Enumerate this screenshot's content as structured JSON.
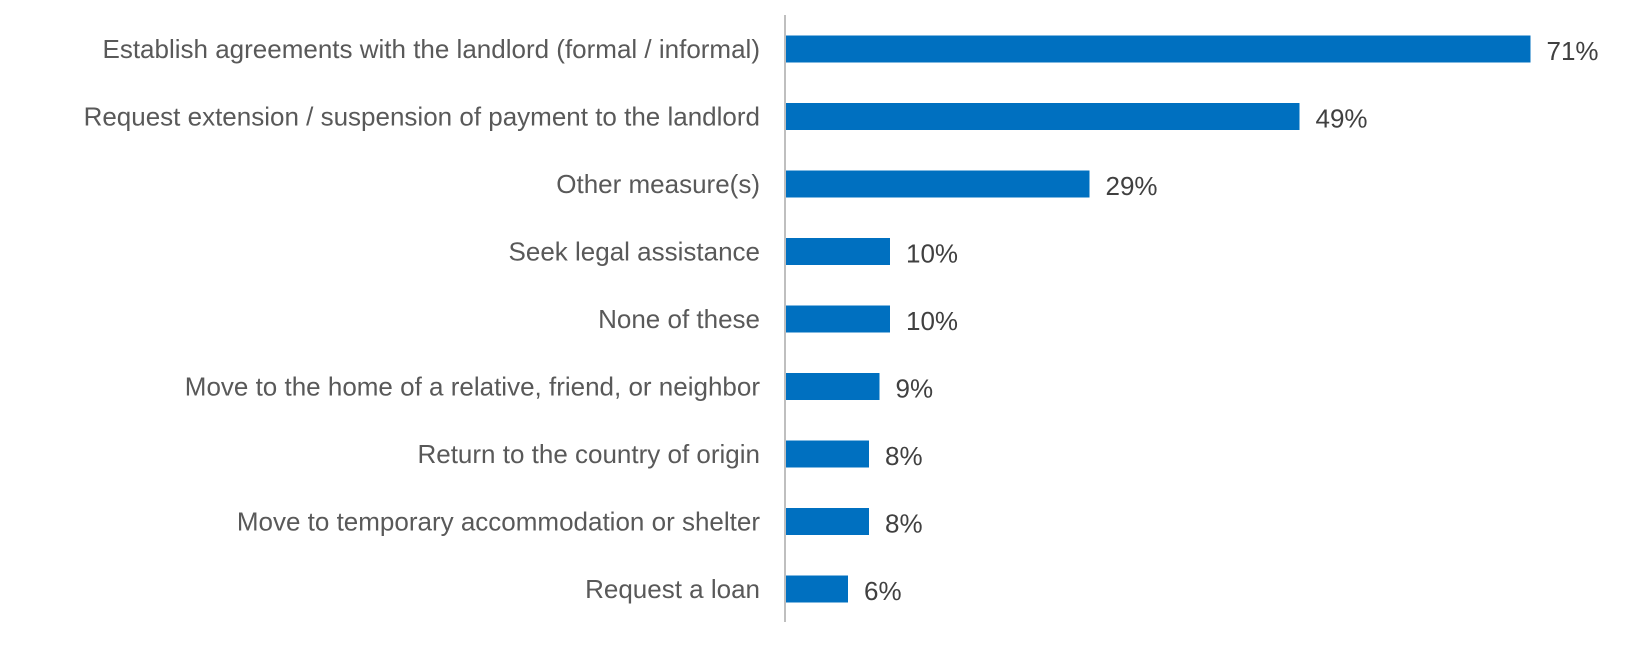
{
  "chart_data": {
    "type": "bar",
    "orientation": "horizontal",
    "categories": [
      "Establish agreements with the landlord (formal / informal)",
      "Request extension / suspension of payment to the landlord",
      "Other measure(s)",
      "Seek legal assistance",
      "None of these",
      "Move to the home of a relative, friend, or neighbor",
      "Return to the country of origin",
      "Move to temporary accommodation or shelter",
      "Request a loan"
    ],
    "values": [
      71,
      49,
      29,
      10,
      10,
      9,
      8,
      8,
      6
    ],
    "value_labels": [
      "71%",
      "49%",
      "29%",
      "10%",
      "10%",
      "9%",
      "8%",
      "8%",
      "6%"
    ],
    "unit": "%",
    "xlim": [
      0,
      75
    ],
    "title": "",
    "xlabel": "",
    "ylabel": "",
    "grid": false,
    "legend": "none",
    "colors": {
      "bar": "#0070C0",
      "axis": "#BFBFBF"
    }
  }
}
